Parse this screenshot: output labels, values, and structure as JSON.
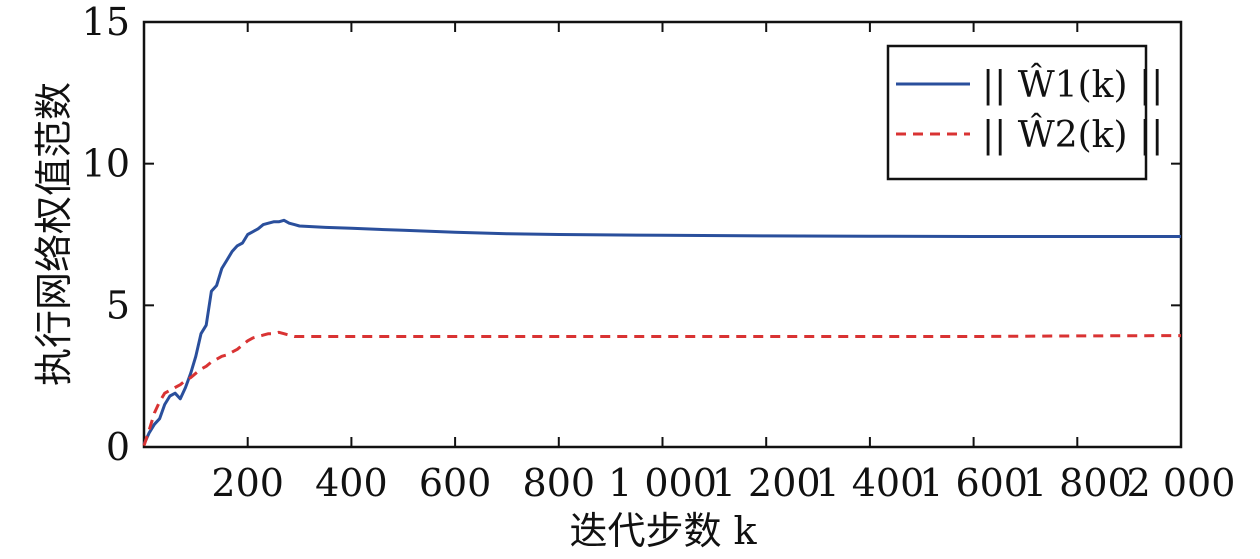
{
  "chart_data": {
    "type": "line",
    "xlabel": "迭代步数 k",
    "ylabel": "执行网络权值范数",
    "xlim": [
      0,
      2000
    ],
    "ylim": [
      0,
      15
    ],
    "xticks": [
      200,
      400,
      600,
      800,
      1000,
      1200,
      1400,
      1600,
      1800,
      2000
    ],
    "xtick_labels": [
      "200",
      "400",
      "600",
      "800",
      "1 000",
      "1 200",
      "1 400",
      "1 600",
      "1 800",
      "2 000"
    ],
    "yticks": [
      0,
      5,
      10,
      15
    ],
    "ytick_labels": [
      "0",
      "5",
      "10",
      "15"
    ],
    "grid": false,
    "legend_position": "top-right",
    "series": [
      {
        "name": "|| Ŵ1(k) ||",
        "color": "#2a4f9c",
        "style": "solid",
        "x": [
          0,
          10,
          20,
          30,
          40,
          50,
          60,
          70,
          80,
          90,
          100,
          110,
          120,
          130,
          140,
          150,
          160,
          170,
          180,
          190,
          200,
          210,
          220,
          230,
          240,
          250,
          260,
          270,
          280,
          290,
          300,
          350,
          400,
          500,
          600,
          700,
          800,
          1000,
          1200,
          1400,
          1600,
          1800,
          2000
        ],
        "y": [
          0.1,
          0.5,
          0.8,
          1.0,
          1.5,
          1.8,
          1.9,
          1.7,
          2.1,
          2.6,
          3.2,
          4.0,
          4.3,
          5.5,
          5.7,
          6.3,
          6.6,
          6.9,
          7.1,
          7.2,
          7.5,
          7.6,
          7.7,
          7.85,
          7.9,
          7.95,
          7.95,
          8.0,
          7.9,
          7.85,
          7.8,
          7.75,
          7.72,
          7.65,
          7.58,
          7.53,
          7.5,
          7.47,
          7.45,
          7.44,
          7.43,
          7.43,
          7.43
        ]
      },
      {
        "name": "|| Ŵ2(k) ||",
        "color": "#d93333",
        "style": "dashed",
        "x": [
          0,
          10,
          20,
          30,
          40,
          50,
          60,
          70,
          80,
          90,
          100,
          110,
          120,
          130,
          140,
          150,
          160,
          170,
          180,
          190,
          200,
          210,
          220,
          230,
          240,
          250,
          260,
          270,
          280,
          290,
          300,
          400,
          600,
          800,
          1000,
          1200,
          1400,
          1600,
          1800,
          2000
        ],
        "y": [
          0.05,
          0.6,
          1.2,
          1.6,
          1.9,
          2.0,
          2.1,
          2.2,
          2.35,
          2.45,
          2.6,
          2.75,
          2.85,
          3.0,
          3.1,
          3.2,
          3.25,
          3.35,
          3.45,
          3.6,
          3.75,
          3.85,
          3.9,
          3.95,
          4.0,
          4.0,
          4.05,
          4.0,
          3.95,
          3.9,
          3.9,
          3.9,
          3.9,
          3.9,
          3.9,
          3.9,
          3.9,
          3.9,
          3.92,
          3.93
        ]
      }
    ]
  }
}
